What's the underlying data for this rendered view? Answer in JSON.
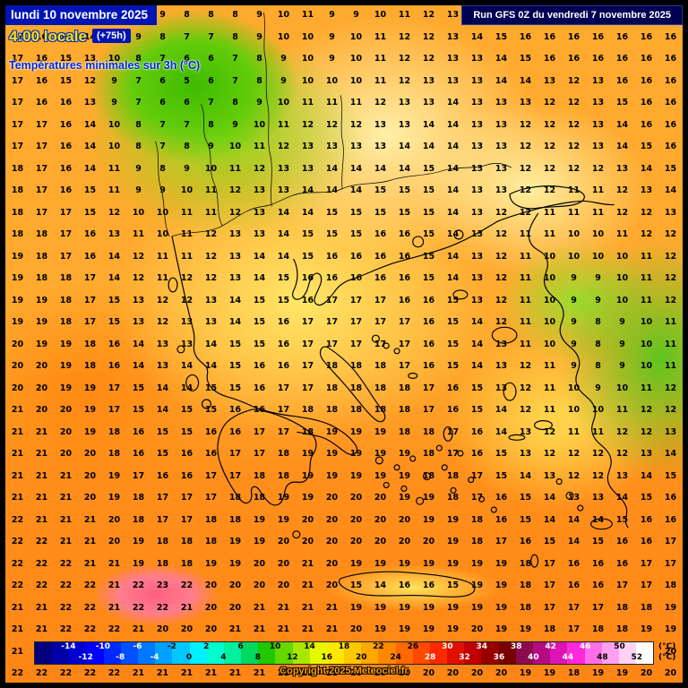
{
  "header": {
    "date_line": "lundi 10 novembre 2025",
    "time_line": "4:00 locale",
    "offset_badge": "(+75h)",
    "subtitle": "Températures minimales sur 3h (°C)",
    "run_info": "Run GFS 0Z du vendredi 7 novembre 2025"
  },
  "footer": {
    "copyright": "Copyright 2025 Meteociel.fr"
  },
  "colors": {
    "banner_blue": "#0014B4",
    "run_banner_navy": "#000052",
    "time_yellow": "#FFE000",
    "subtitle_blue": "#0028DC",
    "copyright_orange": "#FFA000",
    "base_orange": "#FFAA2E"
  },
  "scale": {
    "unit_label": "(°C)",
    "min": -18,
    "max": 54,
    "segment_colors": [
      "#000080",
      "#0000A8",
      "#0000D0",
      "#0000FF",
      "#0028FF",
      "#0050FF",
      "#0078FF",
      "#00A0FF",
      "#00C8FF",
      "#00F0FF",
      "#00FFD0",
      "#00F0A0",
      "#00D860",
      "#20C800",
      "#64D800",
      "#A8E800",
      "#E8F800",
      "#FFE800",
      "#FFC800",
      "#FFA800",
      "#FF8800",
      "#FF6800",
      "#FF4800",
      "#FF2800",
      "#E01000",
      "#C00000",
      "#980000",
      "#780000",
      "#8C0A50",
      "#B40A82",
      "#DC14B4",
      "#FF28DC",
      "#FF6EE6",
      "#FFA0EE",
      "#FFD2F6",
      "#FFFFFF"
    ],
    "top_labels": [
      -14,
      -10,
      -6,
      -2,
      2,
      6,
      10,
      14,
      18,
      22,
      26,
      30,
      34,
      38,
      42,
      46,
      50
    ],
    "bottom_labels": [
      -12,
      -8,
      -4,
      0,
      4,
      8,
      12,
      16,
      20,
      24,
      28,
      32,
      36,
      40,
      44,
      48,
      52
    ]
  },
  "map": {
    "grid": [
      "17 17 16 14 12 10 9 8 8 8 9 10 11 9 9 10 11 12 13 14 15 16 16 16 16 16 16 16",
      "17 16 16 14 11 9 8 7 7 8 9 10 10 9 10 11 12 12 13 14 15 16 16 16 16 16 16 16",
      "17 16 15 13 10 8 7 6 6 7 8 9 10 9 10 11 12 12 13 13 14 15 16 16 16 16 16 16",
      "17 16 15 12 9 7 6 5 6 7 8 9 10 10 10 11 12 13 13 13 14 14 13 12 13 16 16 16",
      "17 16 16 13 9 7 6 6 7 8 9 10 11 11 11 12 13 13 14 13 13 13 12 12 13 15 16 16",
      "17 17 16 14 10 8 7 7 8 9 10 11 12 12 12 13 13 14 14 13 13 12 12 12 13 14 16 16",
      "17 17 16 14 10 8 7 8 9 10 11 12 13 13 13 13 14 14 14 13 13 12 12 12 13 14 15 16",
      "18 17 16 14 11 9 8 9 10 11 12 13 13 14 14 14 14 15 14 13 13 12 12 12 12 13 14 15",
      "18 17 16 15 11 9 9 10 11 12 13 13 14 14 14 15 15 15 14 13 13 12 12 11 11 12 13 14",
      "18 17 17 15 12 10 10 11 11 12 13 14 14 15 15 15 15 15 14 13 12 12 11 11 11 12 12 13",
      "18 18 17 16 13 11 10 11 12 13 13 14 15 15 15 16 16 15 14 13 12 11 11 10 10 11 12 12",
      "19 18 17 16 14 12 11 11 12 13 14 14 15 16 16 16 16 15 14 13 12 11 10 10 10 10 11 12",
      "19 18 18 17 14 12 11 12 12 13 14 15 16 16 16 16 16 15 14 13 12 11 10 9 9 10 11 12",
      "19 19 18 17 15 13 12 12 13 14 15 15 16 17 17 17 16 16 15 13 12 11 10 9 9 10 11 12",
      "19 19 18 17 15 13 12 13 13 14 15 16 17 17 17 17 17 16 15 14 12 11 10 9 8 9 10 11",
      "20 19 19 18 16 14 13 13 14 15 15 16 17 17 17 17 17 16 15 14 13 11 10 9 8 9 10 11",
      "20 20 19 18 16 14 13 14 14 15 16 16 17 18 18 18 17 16 15 14 13 12 11 9 8 9 10 11",
      "20 20 19 19 17 15 14 14 15 15 16 17 17 18 18 18 18 17 16 15 13 12 11 10 9 10 11 12",
      "21 20 20 19 17 15 14 15 15 16 16 17 18 18 18 18 18 17 16 15 14 12 11 10 10 11 12 12",
      "21 21 20 19 18 16 15 15 16 16 17 17 18 19 19 19 18 18 17 16 14 13 12 11 11 12 12 13",
      "21 21 20 20 18 16 15 16 16 17 17 18 19 19 19 19 19 18 17 16 15 13 12 12 12 12 13 14",
      "21 21 21 20 19 17 16 16 17 17 18 18 19 19 19 19 19 18 18 17 15 14 13 12 12 13 14 15",
      "21 21 21 20 19 18 17 17 17 18 18 19 19 20 20 20 19 19 18 17 16 15 14 13 13 14 15 16",
      "22 21 21 21 20 18 17 17 18 18 19 19 20 20 20 20 20 19 19 18 16 15 14 14 14 15 16 16",
      "22 22 21 21 20 19 18 18 18 19 19 20 20 20 20 20 20 20 19 18 17 16 15 14 15 16 16 17",
      "22 22 22 21 21 19 18 18 19 19 20 20 21 20 19 19 19 19 19 19 19 18 17 16 16 16 17 17",
      "22 22 22 22 21 22 23 22 20 20 20 20 21 20 15 14 16 16 15 19 19 18 17 16 16 17 17 18",
      "21 21 22 22 21 22 22 21 20 20 21 21 21 21 19 19 19 19 19 19 19 18 17 17 17 18 18 19",
      "21 21 22 22 22 21 20 20 20 21 21 21 21 21 20 19 19 19 19 20 19 19 18 17 18 18 19 19",
      "21 22 22 22 22 21 21 20 21 21 21 21 21 21 20 20 19 19 20 20 20 19 18 18 18 19 19 20",
      "22 22 22 22 22 21 21 21 21 21 21 21 22 21 20 20 20 20 20 20 20 19 19 18 19 19 20 20"
    ]
  }
}
